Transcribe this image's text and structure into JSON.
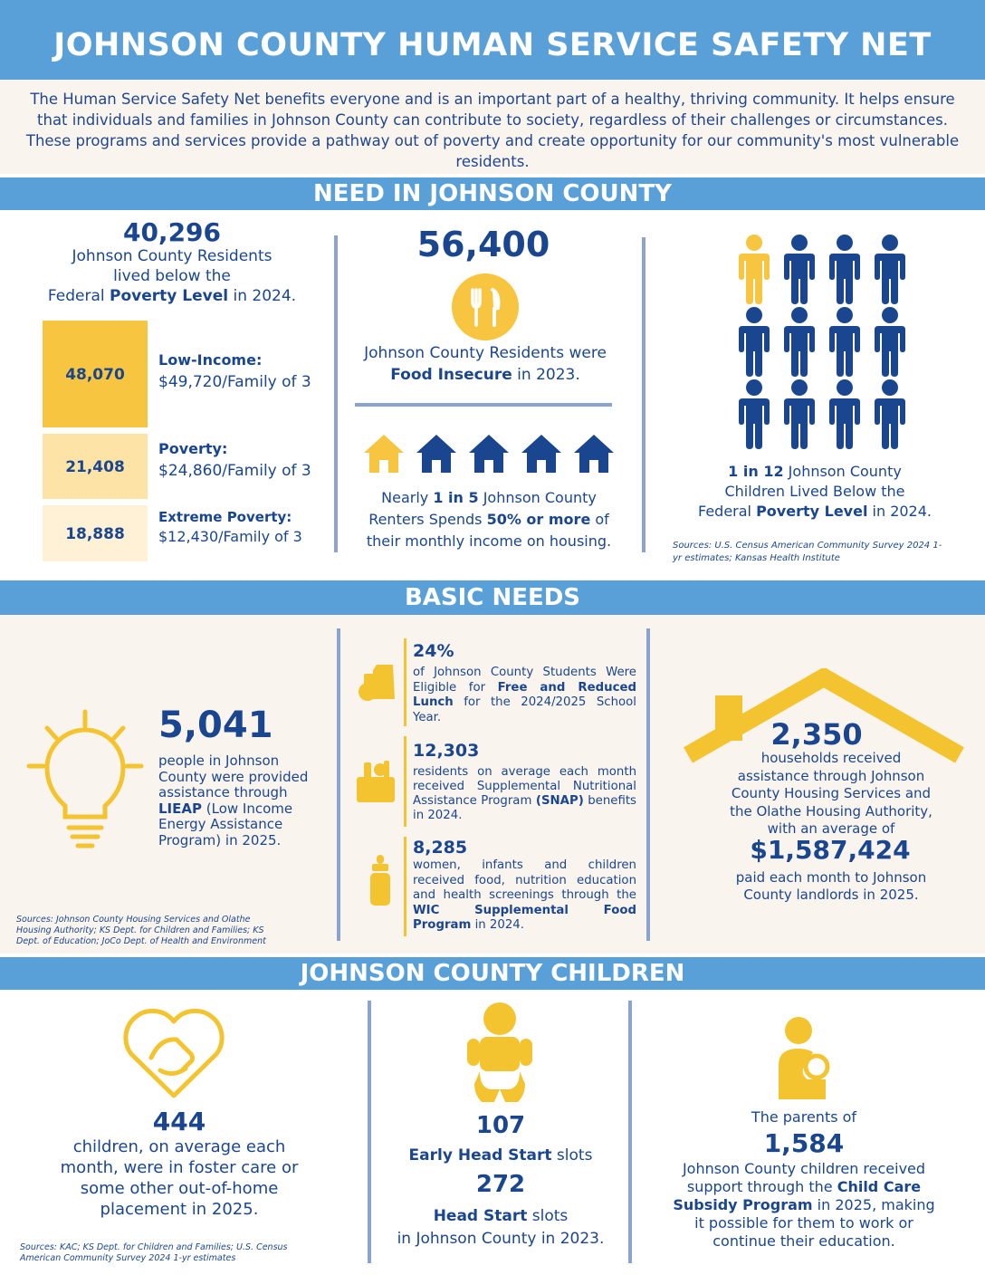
{
  "header": {
    "title": "JOHNSON COUNTY HUMAN SERVICE SAFETY NET",
    "intro": "The Human Service Safety Net benefits everyone and is an important part of a healthy, thriving community. It helps ensure that individuals and families in Johnson County can contribute to society, regardless of their challenges or circumstances. These programs and services provide a pathway out of poverty and create opportunity for our community's most vulnerable residents."
  },
  "need": {
    "heading": "NEED IN JOHNSON COUNTY",
    "poverty_count": "40,296",
    "poverty_text_1": "Johnson County Residents",
    "poverty_text_2": "lived below the",
    "poverty_text_3a": "Federal ",
    "poverty_text_3b": "Poverty Level",
    "poverty_text_3c": " in 2024.",
    "tiers": [
      {
        "value": "48,070",
        "label": "Low-Income:",
        "amount": "$49,720/Family of 3",
        "color": "#f7c53f"
      },
      {
        "value": "21,408",
        "label": "Poverty:",
        "amount": "$24,860/Family of 3",
        "color": "#fde4a6"
      },
      {
        "value": "18,888",
        "label": "Extreme Poverty:",
        "amount": "$12,430/Family of 3",
        "color": "#fef1d6"
      }
    ],
    "food_count": "56,400",
    "food_text_1": "Johnson County Residents were",
    "food_text_2a": "Food Insecure",
    "food_text_2b": " in 2023.",
    "rent_text_1a": "Nearly ",
    "rent_text_1b": "1 in 5",
    "rent_text_1c": " Johnson County",
    "rent_text_2a": "Renters Spends ",
    "rent_text_2b": "50% or more",
    "rent_text_2c": " of",
    "rent_text_3": "their monthly income on housing.",
    "child_text_1a": "1 in 12",
    "child_text_1b": " Johnson County",
    "child_text_2": "Children Lived Below the",
    "child_text_3a": "Federal ",
    "child_text_3b": "Poverty Level",
    "child_text_3c": " in 2024.",
    "sources": "Sources:  U.S. Census American Community Survey 2024 1-yr estimates; Kansas Health Institute"
  },
  "basic": {
    "heading": "BASIC NEEDS",
    "liheap_count": "5,041",
    "liheap_text_1": "people in Johnson County were provided assistance through ",
    "liheap_bold": "LIEAP",
    "liheap_text_2": " (Low Income Energy Assistance Program) in 2025.",
    "sources": "Sources: Johnson County Housing Services and Olathe Housing Authority; KS Dept. for Children and Families; KS Dept. of Education; JoCo Dept. of Health and Environment",
    "lunch_count": "24%",
    "lunch_text_1": "of Johnson County Students Were Eligible for ",
    "lunch_bold": "Free and Reduced Lunch",
    "lunch_text_2": " for the 2024/2025 School Year.",
    "snap_count": "12,303",
    "snap_text_1": "residents on average each month received Supplemental Nutritional Assistance Program ",
    "snap_bold": "(SNAP)",
    "snap_text_2": " benefits in 2024.",
    "wic_count": "8,285",
    "wic_text_1": "women, infants and children received food, nutrition education and health screenings through the ",
    "wic_bold": "WIC Supplemental Food Program",
    "wic_text_2": " in 2024.",
    "housing_count": "2,350",
    "housing_text": "households received assistance through Johnson County Housing Services and the Olathe Housing Authority, with an average of",
    "housing_amount": "$1,587,424",
    "housing_text_2": "paid each month to Johnson County landlords in 2025."
  },
  "children": {
    "heading": "JOHNSON COUNTY CHILDREN",
    "foster_count": "444",
    "foster_text": "children, on average each month, were in foster care or some other out-of-home placement in 2025.",
    "sources": "Sources: KAC; KS Dept. for Children and Families; U.S. Census American Community Survey 2024 1-yr estimates",
    "ehs_count": "107",
    "ehs_bold": "Early Head Start",
    "ehs_text": " slots",
    "hs_count": "272",
    "hs_bold": "Head Start",
    "hs_text": " slots",
    "hs_text_2": "in Johnson County in 2023.",
    "ccs_pre": "The parents of",
    "ccs_count": "1,584",
    "ccs_text_1": "Johnson County children received support through the ",
    "ccs_bold": "Child Care Subsidy Program",
    "ccs_text_2": " in 2025, making it possible for them to work or continue their education."
  },
  "colors": {
    "banner": "#5aa0d8",
    "navy": "#1a4690",
    "yellow": "#f4c430",
    "cream": "#faf4ef"
  }
}
